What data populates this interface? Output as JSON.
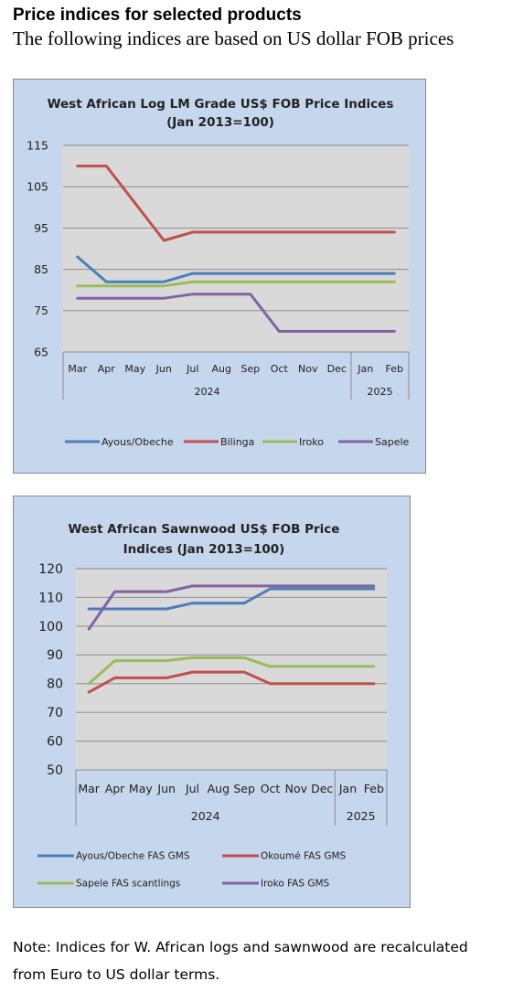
{
  "header": {
    "title": "Price indices for selected products",
    "subtitle": "The following indices are based on US dollar FOB prices"
  },
  "note": {
    "line1": "Note: Indices for W. African logs and sawnwood are recalculated",
    "line2": "from Euro to US dollar terms."
  },
  "chart_data": [
    {
      "type": "line",
      "title": [
        "West African Log LM Grade US$ FOB Price Indices",
        "(Jan 2013=100)"
      ],
      "categories": [
        "Mar",
        "Apr",
        "May",
        "Jun",
        "Jul",
        "Aug",
        "Sep",
        "Oct",
        "Nov",
        "Dec",
        "Jan",
        "Feb"
      ],
      "year_groups": [
        {
          "label": "2024",
          "count": 10
        },
        {
          "label": "2025",
          "count": 2
        }
      ],
      "ylim": [
        65,
        115
      ],
      "yticks": [
        65,
        75,
        85,
        95,
        105,
        115
      ],
      "grid": true,
      "legend": "bottom",
      "series": [
        {
          "name": "Ayous/Obeche",
          "color": "#4a7ebb",
          "values": [
            88,
            82,
            82,
            82,
            84,
            84,
            84,
            84,
            84,
            84,
            84,
            84
          ]
        },
        {
          "name": "Bilinga",
          "color": "#c0504d",
          "values": [
            110,
            110,
            101,
            92,
            94,
            94,
            94,
            94,
            94,
            94,
            94,
            94
          ]
        },
        {
          "name": "Iroko",
          "color": "#9bbb59",
          "values": [
            81,
            81,
            81,
            81,
            82,
            82,
            82,
            82,
            82,
            82,
            82,
            82
          ]
        },
        {
          "name": "Sapele",
          "color": "#8064a2",
          "values": [
            78,
            78,
            78,
            78,
            79,
            79,
            79,
            70,
            70,
            70,
            70,
            70
          ]
        }
      ]
    },
    {
      "type": "line",
      "title": [
        "West African Sawnwood US$ FOB Price",
        "Indices (Jan 2013=100)"
      ],
      "categories": [
        "Mar",
        "Apr",
        "May",
        "Jun",
        "Jul",
        "Aug",
        "Sep",
        "Oct",
        "Nov",
        "Dec",
        "Jan",
        "Feb"
      ],
      "year_groups": [
        {
          "label": "2024",
          "count": 10
        },
        {
          "label": "2025",
          "count": 2
        }
      ],
      "ylim": [
        50,
        120
      ],
      "yticks": [
        50,
        60,
        70,
        80,
        90,
        100,
        110,
        120
      ],
      "grid": true,
      "legend": "bottom",
      "series": [
        {
          "name": "Ayous/Obeche  FAS GMS",
          "color": "#4a7ebb",
          "values": [
            106,
            106,
            106,
            106,
            108,
            108,
            108,
            113,
            113,
            113,
            113,
            113
          ]
        },
        {
          "name": "Okoumé  FAS GMS",
          "color": "#c0504d",
          "values": [
            77,
            82,
            82,
            82,
            84,
            84,
            84,
            80,
            80,
            80,
            80,
            80
          ]
        },
        {
          "name": "Sapele FAS scantlings",
          "color": "#9bbb59",
          "values": [
            80,
            88,
            88,
            88,
            89,
            89,
            89,
            86,
            86,
            86,
            86,
            86
          ]
        },
        {
          "name": "Iroko FAS GMS",
          "color": "#8064a2",
          "values": [
            99,
            112,
            112,
            112,
            114,
            114,
            114,
            114,
            114,
            114,
            114,
            114
          ]
        }
      ]
    }
  ]
}
